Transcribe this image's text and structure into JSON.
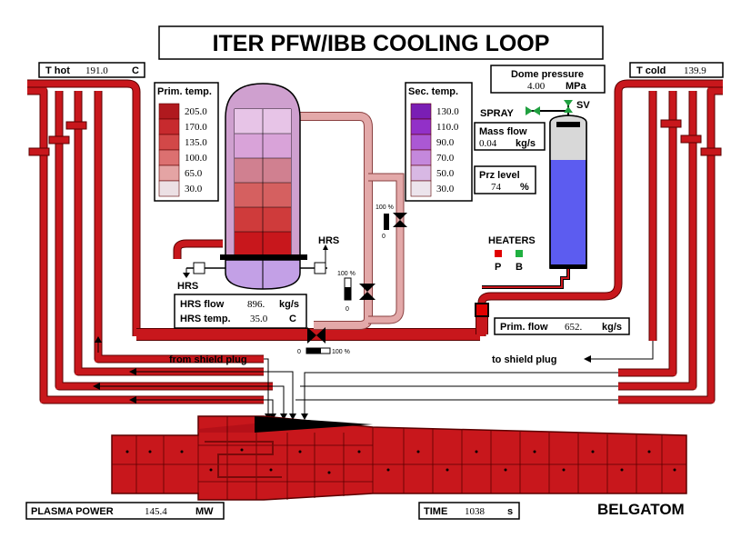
{
  "title": "ITER PFW/IBB COOLING LOOP",
  "t_hot": {
    "label": "T hot",
    "value": "191.0",
    "unit": "C"
  },
  "t_cold": {
    "label": "T cold",
    "value": "139.9"
  },
  "dome_pressure": {
    "label": "Dome pressure",
    "value": "4.00",
    "unit": "MPa"
  },
  "prim_temp": {
    "title": "Prim. temp.",
    "levels": [
      "205.0",
      "170.0",
      "135.0",
      "100.0",
      "65.0",
      "30.0"
    ],
    "colors": [
      "#b0191e",
      "#c72a2e",
      "#d24848",
      "#dc7070",
      "#e4a4a4",
      "#ece0e4"
    ]
  },
  "sec_temp": {
    "title": "Sec. temp.",
    "levels": [
      "130.0",
      "110.0",
      "90.0",
      "70.0",
      "50.0",
      "30.0"
    ],
    "colors": [
      "#7a1eb4",
      "#9230c8",
      "#ab58d4",
      "#c488dc",
      "#d8b8e4",
      "#ece4ec"
    ]
  },
  "spray": "SPRAY",
  "sv": "SV",
  "mass_flow": {
    "label": "Mass flow",
    "value": "0.04",
    "unit": "kg/s"
  },
  "prz_level": {
    "label": "Prz level",
    "value": "74",
    "unit": "%"
  },
  "heaters": {
    "label": "HEATERS",
    "p": "P",
    "b": "B"
  },
  "hrs_label": "HRS",
  "hrs_flow": {
    "label": "HRS flow",
    "value": "896.",
    "unit": "kg/s"
  },
  "hrs_temp": {
    "label": "HRS temp.",
    "value": "35.0",
    "unit": "C"
  },
  "prim_flow": {
    "label": "Prim. flow",
    "value": "652.",
    "unit": "kg/s"
  },
  "valve_scale": {
    "zero": "0",
    "full": "100 %"
  },
  "from_shield_plug": "from shield plug",
  "to_shield_plug": "to shield plug",
  "plasma_power": {
    "label": "PLASMA POWER",
    "value": "145.4",
    "unit": "MW"
  },
  "time": {
    "label": "TIME",
    "value": "1038",
    "unit": "s"
  },
  "brand": "BELGATOM",
  "colors": {
    "pipe": "#c8171c",
    "pipe_dark": "#5a0000",
    "pipe_light": "#e3a9a9",
    "pressurizer": "#5c5cf0",
    "valve_green": "#20a040",
    "heater_p": "#e00000",
    "heater_b": "#20b040",
    "hx_purple": "#c3a0e6"
  }
}
